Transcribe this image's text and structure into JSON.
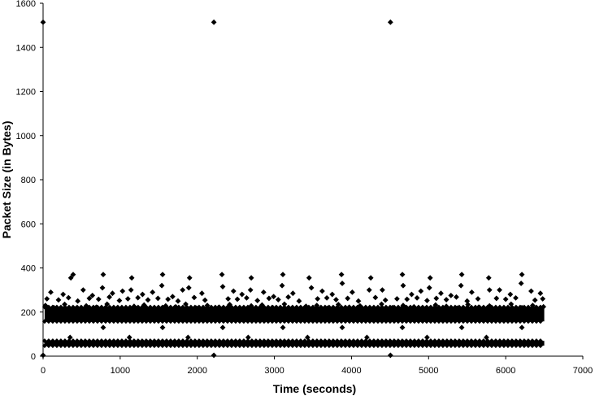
{
  "chart_data": {
    "type": "scatter",
    "title": "",
    "xlabel": "Time (seconds)",
    "ylabel": "Packet Size (in Bytes)",
    "xlim": [
      0,
      7000
    ],
    "ylim": [
      0,
      1600
    ],
    "x_ticks": [
      0,
      1000,
      2000,
      3000,
      4000,
      5000,
      6000,
      7000
    ],
    "y_ticks": [
      0,
      200,
      400,
      600,
      800,
      1000,
      1200,
      1400,
      1600
    ],
    "grid": false,
    "legend": "none",
    "marker": "diamond",
    "marker_color": "#000000",
    "series": [
      {
        "x": [
          0,
          2215,
          4505,
          0,
          2215,
          4505,
          390,
          780,
          1150,
          1550,
          1900,
          2320,
          2700,
          3110,
          3450,
          3870,
          4250,
          4660,
          5020,
          5430,
          5780,
          6210,
          360,
          770,
          1140,
          1540,
          1890,
          2330,
          2690,
          3100,
          3480,
          3880,
          4230,
          4670,
          5010,
          5420,
          5790,
          6200,
          100,
          260,
          520,
          640,
          900,
          1030,
          1290,
          1420,
          1680,
          1810,
          2060,
          2470,
          2580,
          2860,
          2990,
          3240,
          3620,
          3750,
          4010,
          4400,
          4780,
          4900,
          5160,
          5290,
          5560,
          5920,
          6060,
          6330,
          6450,
          50,
          200,
          330,
          450,
          600,
          720,
          860,
          990,
          1100,
          1230,
          1360,
          1490,
          1620,
          1750,
          1960,
          2100,
          2400,
          2520,
          2640,
          2780,
          2930,
          3050,
          3180,
          3320,
          3560,
          3680,
          3800,
          3950,
          4090,
          4310,
          4440,
          4590,
          4720,
          4850,
          4980,
          5100,
          5230,
          5360,
          5500,
          5640,
          5880,
          6000,
          6130,
          6380,
          6480,
          30,
          140,
          280,
          420,
          560,
          690,
          830,
          960,
          1180,
          1310,
          1450,
          1590,
          1720,
          1850,
          1990,
          2130,
          2280,
          2420,
          2560,
          2700,
          2840,
          2980,
          3130,
          3270,
          3410,
          3550,
          3690,
          3830,
          3970,
          4110,
          4250,
          4390,
          4530,
          4670,
          4810,
          4950,
          5090,
          5230,
          5370,
          5510,
          5650,
          5790,
          5930,
          6070,
          6210,
          6350,
          6490,
          780,
          1550,
          2330,
          3110,
          3880,
          4660,
          5430,
          6210,
          350,
          1120,
          1880,
          2660,
          3430,
          4200,
          4980,
          5750
        ],
        "y": [
          1514,
          1514,
          1514,
          4,
          4,
          4,
          370,
          370,
          355,
          370,
          355,
          370,
          355,
          370,
          355,
          370,
          355,
          370,
          355,
          370,
          355,
          370,
          355,
          310,
          300,
          320,
          310,
          315,
          300,
          320,
          310,
          330,
          300,
          320,
          310,
          320,
          300,
          330,
          290,
          280,
          300,
          275,
          285,
          295,
          280,
          290,
          270,
          300,
          285,
          295,
          280,
          290,
          270,
          285,
          295,
          280,
          290,
          300,
          280,
          295,
          285,
          275,
          290,
          300,
          280,
          295,
          285,
          260,
          255,
          265,
          250,
          262,
          258,
          268,
          252,
          260,
          265,
          255,
          262,
          258,
          250,
          266,
          254,
          260,
          258,
          264,
          252,
          262,
          256,
          268,
          250,
          260,
          264,
          256,
          262,
          250,
          266,
          254,
          260,
          258,
          264,
          252,
          262,
          256,
          268,
          250,
          260,
          262,
          258,
          264,
          254,
          260,
          230,
          220,
          235,
          215,
          228,
          222,
          236,
          218,
          226,
          232,
          214,
          228,
          224,
          236,
          218,
          230,
          222,
          234,
          216,
          228,
          232,
          220,
          236,
          214,
          226,
          230,
          218,
          234,
          222,
          228,
          216,
          236,
          220,
          230,
          224,
          214,
          232,
          226,
          218,
          234,
          222,
          228,
          216,
          236,
          220,
          230,
          224,
          130,
          130,
          130,
          130,
          130,
          130,
          130,
          130,
          85,
          85,
          85,
          85,
          85,
          85,
          85,
          85
        ]
      }
    ],
    "dense_bands": [
      {
        "x_from": 20,
        "x_to": 6500,
        "y_from": 165,
        "y_to": 215
      },
      {
        "x_from": 20,
        "x_to": 6500,
        "y_from": 55,
        "y_to": 62
      }
    ]
  }
}
